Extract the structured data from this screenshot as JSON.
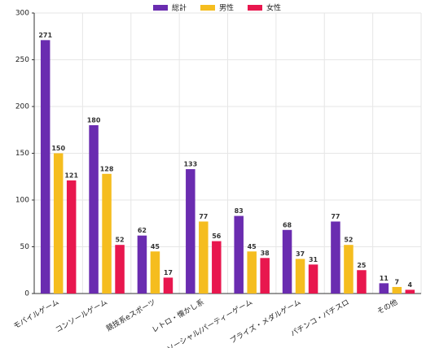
{
  "chart_data": {
    "type": "bar",
    "categories": [
      "モバイルゲーム",
      "コンソールゲーム",
      "競技系eスポーツ",
      "レトロ・懐かし系",
      "ソーシャル/パーティーゲーム",
      "プライズ・メダルゲーム",
      "パチンコ・パチスロ",
      "その他"
    ],
    "series": [
      {
        "name": "総計",
        "color": "#6a2cb0",
        "values": [
          271,
          180,
          62,
          133,
          83,
          68,
          77,
          11
        ]
      },
      {
        "name": "男性",
        "color": "#f5bd1f",
        "values": [
          150,
          128,
          45,
          77,
          45,
          37,
          52,
          7
        ]
      },
      {
        "name": "女性",
        "color": "#e8174e",
        "values": [
          121,
          52,
          17,
          56,
          38,
          31,
          25,
          4
        ]
      }
    ],
    "ylim": [
      0,
      300
    ],
    "yticks": [
      0,
      50,
      100,
      150,
      200,
      250,
      300
    ],
    "grid": true,
    "legend": "top"
  }
}
